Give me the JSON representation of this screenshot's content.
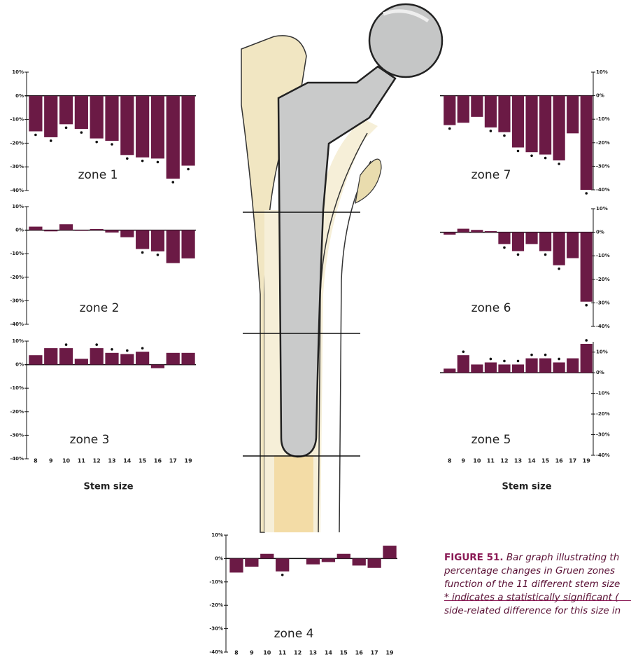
{
  "chart_data": [
    {
      "type": "bar",
      "title": "zone 1",
      "color": "#6b1a45",
      "values": [
        -15,
        -17.5,
        -12,
        -14,
        -18,
        -19,
        -25,
        -26,
        -26.5,
        -35,
        -29.5
      ],
      "significant": [
        true,
        true,
        true,
        true,
        true,
        true,
        true,
        true,
        true,
        true,
        true
      ],
      "ylim": [
        -40,
        10
      ],
      "yticks": [
        {
          "value": 10,
          "label": "10%"
        },
        {
          "value": 0,
          "label": "0%"
        },
        {
          "value": -10,
          "label": "-10%"
        },
        {
          "value": -20,
          "label": "-20%"
        },
        {
          "value": -30,
          "label": "-30%"
        },
        {
          "value": -40,
          "label": "-40%"
        }
      ]
    },
    {
      "type": "bar",
      "title": "zone 2",
      "color": "#6b1a45",
      "values": [
        1.5,
        -0.5,
        2.5,
        -0.3,
        0.5,
        -1,
        -3,
        -8,
        -9,
        -14,
        -12
      ],
      "significant": [
        false,
        false,
        false,
        false,
        false,
        false,
        false,
        true,
        true,
        false,
        false
      ],
      "ylim": [
        -40,
        10
      ],
      "yticks": [
        {
          "value": 10,
          "label": "10%"
        },
        {
          "value": 0,
          "label": "0%"
        },
        {
          "value": -10,
          "label": "-10%"
        },
        {
          "value": -20,
          "label": "-20%"
        },
        {
          "value": -30,
          "label": "-30%"
        },
        {
          "value": -40,
          "label": "-40%"
        }
      ]
    },
    {
      "type": "bar",
      "title": "zone 3",
      "color": "#6b1a45",
      "xlabel": "Stem size",
      "categories": [
        "8",
        "9",
        "10",
        "11",
        "12",
        "13",
        "14",
        "15",
        "16",
        "17",
        "19"
      ],
      "values": [
        4,
        7,
        7,
        2.5,
        7,
        5,
        4.5,
        5.5,
        -1.5,
        5,
        5
      ],
      "significant": [
        false,
        false,
        true,
        false,
        true,
        true,
        true,
        true,
        false,
        false,
        false
      ],
      "ylim": [
        -40,
        10
      ],
      "yticks": [
        {
          "value": 10,
          "label": "10%"
        },
        {
          "value": 0,
          "label": "0%"
        },
        {
          "value": -10,
          "label": "-10%"
        },
        {
          "value": -20,
          "label": "-20%"
        },
        {
          "value": -30,
          "label": "-30%"
        },
        {
          "value": -40,
          "label": "-40%"
        }
      ]
    },
    {
      "type": "bar",
      "title": "zone 7",
      "color": "#6b1a45",
      "values": [
        -12.5,
        -11.5,
        -9,
        -13.5,
        -15.5,
        -22,
        -24,
        -25,
        -27.5,
        -16,
        -40
      ],
      "significant": [
        true,
        false,
        false,
        true,
        true,
        true,
        true,
        true,
        true,
        false,
        true
      ],
      "ylim": [
        -40,
        10
      ],
      "yticks": [
        {
          "value": 10,
          "label": "10%"
        },
        {
          "value": 0,
          "label": "0%"
        },
        {
          "value": -10,
          "label": "-10%"
        },
        {
          "value": -20,
          "label": "-20%"
        },
        {
          "value": -30,
          "label": "-30%"
        },
        {
          "value": -40,
          "label": "-40%"
        }
      ]
    },
    {
      "type": "bar",
      "title": "zone 6",
      "color": "#6b1a45",
      "values": [
        -1,
        1.5,
        1,
        0.5,
        -5,
        -8,
        -5,
        -8,
        -14,
        -11,
        -29.5
      ],
      "significant": [
        false,
        false,
        false,
        false,
        true,
        true,
        false,
        true,
        true,
        false,
        true
      ],
      "ylim": [
        -40,
        10
      ],
      "yticks": [
        {
          "value": 10,
          "label": "10%"
        },
        {
          "value": 0,
          "label": "0%"
        },
        {
          "value": -10,
          "label": "-10%"
        },
        {
          "value": -20,
          "label": "-20%"
        },
        {
          "value": -30,
          "label": "-30%"
        },
        {
          "value": -40,
          "label": "-40%"
        }
      ]
    },
    {
      "type": "bar",
      "title": "zone 5",
      "color": "#6b1a45",
      "xlabel": "Stem size",
      "categories": [
        "8",
        "9",
        "10",
        "11",
        "12",
        "13",
        "14",
        "15",
        "16",
        "17",
        "19"
      ],
      "values": [
        2,
        8.5,
        4,
        5,
        4,
        4,
        7,
        7,
        5,
        7,
        14
      ],
      "significant": [
        false,
        true,
        false,
        true,
        true,
        true,
        true,
        true,
        true,
        false,
        true
      ],
      "ylim": [
        -40,
        15
      ],
      "yticks": [
        {
          "value": 10,
          "label": "10%"
        },
        {
          "value": 0,
          "label": "0%"
        },
        {
          "value": -10,
          "label": "-10%"
        },
        {
          "value": -20,
          "label": "-20%"
        },
        {
          "value": -30,
          "label": "-30%"
        },
        {
          "value": -40,
          "label": "-40%"
        }
      ]
    },
    {
      "type": "bar",
      "title": "zone 4",
      "color": "#6b1a45",
      "categories": [
        "8",
        "9",
        "10",
        "11",
        "12",
        "13",
        "14",
        "15",
        "16",
        "17",
        "19"
      ],
      "values": [
        -6,
        -3.5,
        2,
        -5.5,
        0,
        -2.5,
        -1.5,
        2,
        -3,
        -4,
        5.5
      ],
      "significant": [
        false,
        false,
        false,
        true,
        false,
        false,
        false,
        false,
        false,
        false,
        false
      ],
      "ylim": [
        -40,
        10
      ],
      "yticks": [
        {
          "value": 10,
          "label": "10%"
        },
        {
          "value": 0,
          "label": "0%"
        },
        {
          "value": -10,
          "label": "-10%"
        },
        {
          "value": -20,
          "label": "-20%"
        },
        {
          "value": -30,
          "label": "-30%"
        },
        {
          "value": -40,
          "label": "-40%"
        }
      ]
    }
  ],
  "caption": {
    "label": "FIGURE 51.",
    "lines": [
      "Bar graph illustrating th",
      "percentage changes in Gruen zones",
      "function of the 11 different stem size",
      "* indicates a statistically significant (",
      "side-related difference for this size in"
    ]
  }
}
